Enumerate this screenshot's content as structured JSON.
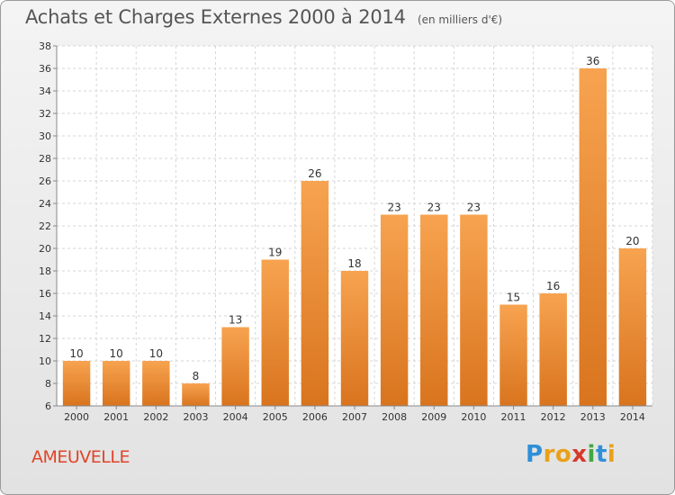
{
  "header": {
    "title": "Achats et Charges Externes 2000 à 2014",
    "unit": "(en milliers d'€)"
  },
  "footer": {
    "commune": "AMEUVELLE",
    "logo_letters": [
      "P",
      "r",
      "o",
      "x",
      "i",
      "t",
      "i"
    ],
    "logo_colors": [
      "#2f8fd8",
      "#e9a11a",
      "#e9a11a",
      "#d63a2a",
      "#43a843",
      "#2f8fd8",
      "#e9a11a"
    ]
  },
  "chart_data": {
    "type": "bar",
    "title": "Achats et Charges Externes 2000 à 2014",
    "subtitle": "(en milliers d'€)",
    "categories": [
      "2000",
      "2001",
      "2002",
      "2003",
      "2004",
      "2005",
      "2006",
      "2007",
      "2008",
      "2009",
      "2010",
      "2011",
      "2012",
      "2013",
      "2014"
    ],
    "values": [
      10,
      10,
      10,
      8,
      13,
      19,
      26,
      18,
      23,
      23,
      23,
      15,
      16,
      36,
      20
    ],
    "ylim": [
      6,
      38
    ],
    "yticks": [
      6,
      8,
      10,
      12,
      14,
      16,
      18,
      20,
      22,
      24,
      26,
      28,
      30,
      32,
      34,
      36,
      38
    ],
    "grid": true,
    "bar_color_top": "#f7a350",
    "bar_color_bottom": "#d9741e"
  }
}
